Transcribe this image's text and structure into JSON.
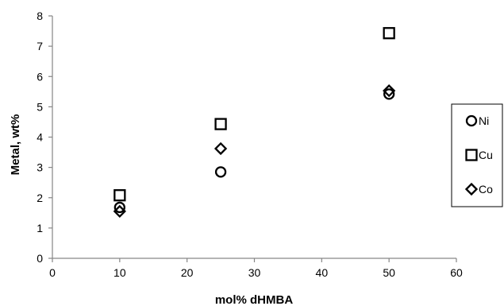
{
  "chart_data": {
    "type": "scatter",
    "title": "",
    "xlabel": "mol% dHMBA",
    "ylabel": "Metal,  wt%",
    "xlim": [
      0,
      60
    ],
    "ylim": [
      0,
      8
    ],
    "xticks": [
      0,
      10,
      20,
      30,
      40,
      50,
      60
    ],
    "yticks": [
      0,
      1,
      2,
      3,
      4,
      5,
      6,
      7,
      8
    ],
    "grid": false,
    "legend_position": "right",
    "series": [
      {
        "name": "Ni",
        "marker": "circle",
        "color": "#000000",
        "x": [
          10,
          25,
          50
        ],
        "y": [
          1.68,
          2.85,
          5.42
        ]
      },
      {
        "name": "Cu",
        "marker": "square",
        "color": "#000000",
        "x": [
          10,
          25,
          50
        ],
        "y": [
          2.08,
          4.43,
          7.43
        ]
      },
      {
        "name": "Co",
        "marker": "diamond",
        "color": "#000000",
        "x": [
          10,
          25,
          50
        ],
        "y": [
          1.55,
          3.62,
          5.53
        ]
      }
    ]
  }
}
